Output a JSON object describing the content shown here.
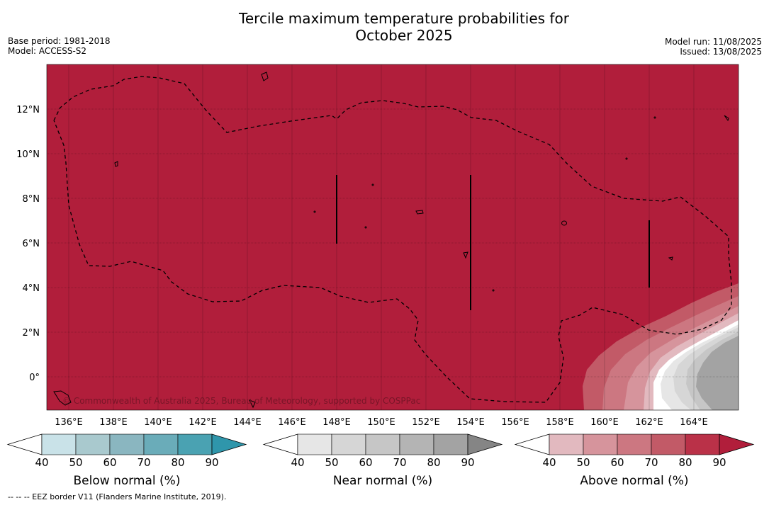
{
  "title_line1": "Tercile maximum temperature probabilities for",
  "title_line2": "October 2025",
  "base_period": "Base period: 1981-2018",
  "model": "Model: ACCESS-S2",
  "model_run": "Model run: 11/08/2025",
  "issued": "Issued: 13/08/2025",
  "copyright": "© Commonwealth of Australia 2025, Bureau of Meteorology, supported by COSPPac",
  "footnote": "--  --  -- EEZ border V11 (Flanders Marine Institute, 2019).",
  "map": {
    "lon_labels": [
      "136°E",
      "138°E",
      "140°E",
      "142°E",
      "144°E",
      "146°E",
      "148°E",
      "150°E",
      "152°E",
      "154°E",
      "156°E",
      "158°E",
      "160°E",
      "162°E",
      "164°E"
    ],
    "lat_labels": [
      "12°N",
      "10°N",
      "8°N",
      "6°N",
      "4°N",
      "2°N",
      "0°"
    ],
    "background_color": "#b11e3b"
  },
  "colorbars": [
    {
      "label": "Below normal (%)",
      "ticks": [
        "40",
        "50",
        "60",
        "70",
        "80",
        "90"
      ],
      "colors": [
        "#ffffff",
        "#c9e2e8",
        "#a9c9ce",
        "#8ab6c0",
        "#6aacb9",
        "#4aa2b2",
        "#2f96ab"
      ]
    },
    {
      "label": "Near normal (%)",
      "ticks": [
        "40",
        "50",
        "60",
        "70",
        "80",
        "90"
      ],
      "colors": [
        "#ffffff",
        "#e6e6e6",
        "#d6d6d6",
        "#c6c6c6",
        "#b4b4b4",
        "#a3a3a3",
        "#858585"
      ]
    },
    {
      "label": "Above normal (%)",
      "ticks": [
        "40",
        "50",
        "60",
        "70",
        "80",
        "90"
      ],
      "colors": [
        "#ffffff",
        "#e2b9bf",
        "#d6949c",
        "#cc7781",
        "#c25a67",
        "#ba3148",
        "#b11e3b"
      ]
    }
  ]
}
